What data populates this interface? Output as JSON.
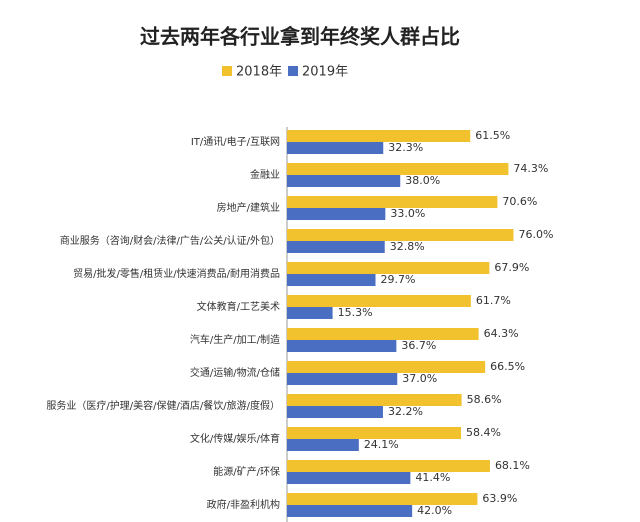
{
  "chart_data": {
    "type": "bar",
    "orientation": "horizontal",
    "title": "过去两年各行业拿到年终奖人群占比",
    "categories": [
      "IT/通讯/电子/互联网",
      "金融业",
      "房地产/建筑业",
      "商业服务（咨询/财会/法律/广告/公关/认证/外包）",
      "贸易/批发/零售/租赁业/快速消费品/耐用消费品",
      "文体教育/工艺美术",
      "汽车/生产/加工/制造",
      "交通/运输/物流/仓储",
      "服务业（医疗/护理/美容/保健/酒店/餐饮/旅游/度假）",
      "文化/传媒/娱乐/体育",
      "能源/矿产/环保",
      "政府/非盈利机构"
    ],
    "series": [
      {
        "name": "2018年",
        "color": "#f2c12e",
        "values": [
          61.5,
          74.3,
          70.6,
          76.0,
          67.9,
          61.7,
          64.3,
          66.5,
          58.6,
          58.4,
          68.1,
          63.9
        ],
        "value_labels": [
          "61.5%",
          "74.3%",
          "70.6%",
          "76.0%",
          "67.9%",
          "61.7%",
          "64.3%",
          "66.5%",
          "58.6%",
          "58.4%",
          "68.1%",
          "63.9%"
        ]
      },
      {
        "name": "2019年",
        "color": "#4a6fc2",
        "values": [
          32.3,
          38.0,
          33.0,
          32.8,
          29.7,
          15.3,
          36.7,
          37.0,
          32.2,
          24.1,
          41.4,
          42.0
        ],
        "value_labels": [
          "32.3%",
          "38.0%",
          "33.0%",
          "32.8%",
          "29.7%",
          "15.3%",
          "36.7%",
          "37.0%",
          "32.2%",
          "24.1%",
          "41.4%",
          "42.0%"
        ]
      }
    ],
    "legend": "top"
  }
}
